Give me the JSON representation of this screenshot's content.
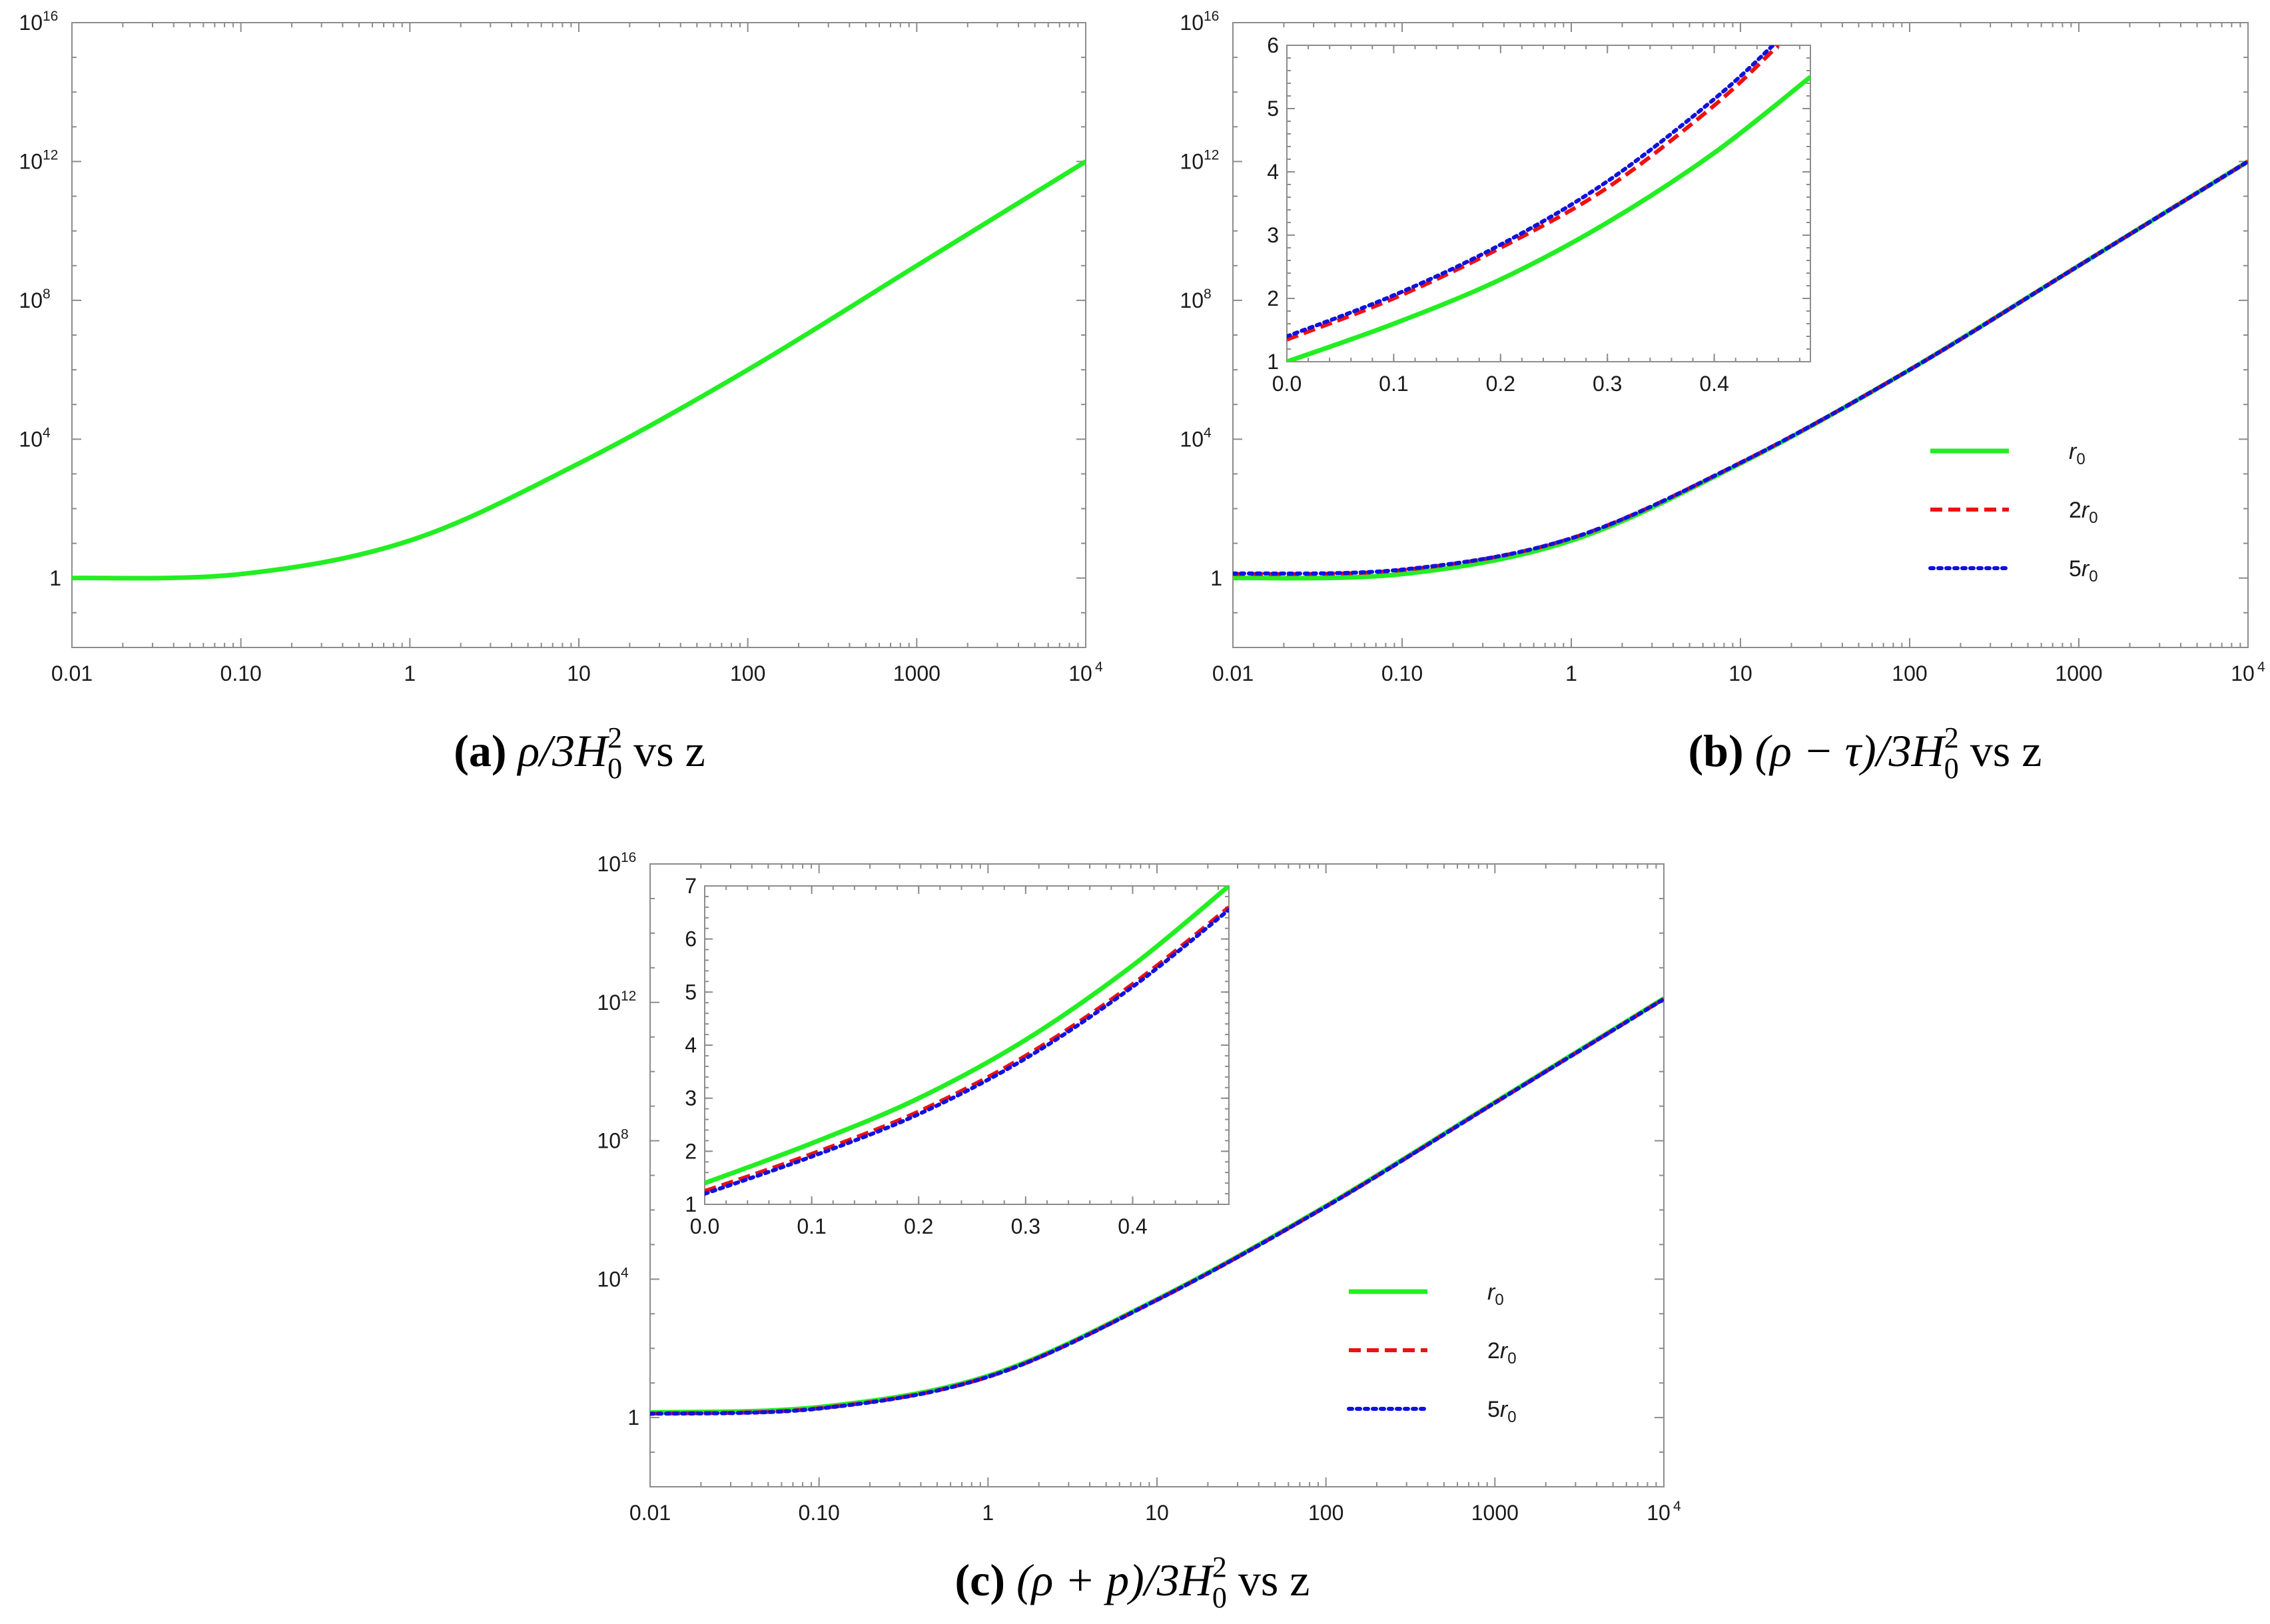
{
  "colors": {
    "green": "#22ee22",
    "red": "#ee1111",
    "blue": "#1111dd",
    "axis": "#8c8c8c"
  },
  "chart_data": [
    {
      "id": "a",
      "type": "line",
      "caption": {
        "label": "(a)",
        "text": "ρ/3H",
        "sup": "2",
        "sub": "0",
        "tail": "vs z"
      },
      "xscale": "log",
      "yscale": "log",
      "xlim": [
        0.01,
        10000
      ],
      "ylim": [
        0.01,
        1e+16
      ],
      "x_ticks": [
        "0.01",
        "0.10",
        "1",
        "10",
        "100",
        "1000",
        "10"
      ],
      "x_last_tick_sup": "4",
      "y_ticks": [
        {
          "base": "1",
          "sup": ""
        },
        {
          "base": "10",
          "sup": "4"
        },
        {
          "base": "10",
          "sup": "8"
        },
        {
          "base": "10",
          "sup": "12"
        },
        {
          "base": "10",
          "sup": "16"
        }
      ],
      "legend": false,
      "series": [
        {
          "color": "green",
          "style": "solid",
          "x": [
            0.01,
            0.1,
            1,
            10,
            100,
            1000,
            10000
          ],
          "values": [
            1.0,
            1.3,
            12,
            2000,
            1000000.0,
            1000000000.0,
            1000000000000.0
          ]
        }
      ]
    },
    {
      "id": "b",
      "type": "line",
      "caption": {
        "label": "(b)",
        "text": "(ρ − τ)/3H",
        "sup": "2",
        "sub": "0",
        "tail": "vs z"
      },
      "xscale": "log",
      "yscale": "log",
      "xlim": [
        0.01,
        10000
      ],
      "ylim": [
        0.01,
        1e+16
      ],
      "x_ticks": [
        "0.01",
        "0.10",
        "1",
        "10",
        "100",
        "1000",
        "10"
      ],
      "x_last_tick_sup": "4",
      "y_ticks": [
        {
          "base": "1",
          "sup": ""
        },
        {
          "base": "10",
          "sup": "4"
        },
        {
          "base": "10",
          "sup": "8"
        },
        {
          "base": "10",
          "sup": "12"
        },
        {
          "base": "10",
          "sup": "16"
        }
      ],
      "legend": true,
      "legend_position": "right",
      "legend_entries": [
        {
          "prefix": "",
          "sub": "0",
          "color": "green",
          "style": "solid"
        },
        {
          "prefix": "2",
          "sub": "0",
          "color": "red",
          "style": "dashed"
        },
        {
          "prefix": "5",
          "sub": "0",
          "color": "blue",
          "style": "dotted"
        }
      ],
      "series": [
        {
          "color": "green",
          "style": "solid",
          "x": [
            0.01,
            0.1,
            1,
            10,
            100,
            1000,
            10000
          ],
          "values": [
            1.0,
            1.3,
            12,
            2000,
            1000000.0,
            1000000000.0,
            1000000000000.0
          ]
        },
        {
          "color": "red",
          "style": "dashed",
          "x": [
            0.01,
            0.1,
            1,
            10,
            100,
            1000,
            10000
          ],
          "values": [
            1.3,
            1.7,
            14,
            2100,
            1000000.0,
            1000000000.0,
            1000000000000.0
          ]
        },
        {
          "color": "blue",
          "style": "dotted",
          "x": [
            0.01,
            0.1,
            1,
            10,
            100,
            1000,
            10000
          ],
          "values": [
            1.35,
            1.75,
            14,
            2100,
            1000000.0,
            1000000000.0,
            1000000000000.0
          ]
        }
      ],
      "inset": {
        "xlim": [
          0,
          0.49
        ],
        "ylim": [
          1,
          6
        ],
        "x_ticks": [
          "0.0",
          "0.1",
          "0.2",
          "0.3",
          "0.4"
        ],
        "y_ticks": [
          "1",
          "2",
          "3",
          "4",
          "5",
          "6"
        ],
        "series": [
          {
            "color": "green",
            "style": "solid",
            "x": [
              0,
              0.1,
              0.2,
              0.3,
              0.4,
              0.49
            ],
            "values": [
              1.0,
              1.6,
              2.3,
              3.2,
              4.3,
              5.5
            ]
          },
          {
            "color": "red",
            "style": "dashed",
            "x": [
              0,
              0.1,
              0.2,
              0.3,
              0.4,
              0.46
            ],
            "values": [
              1.35,
              2.0,
              2.8,
              3.75,
              5.05,
              6.0
            ]
          },
          {
            "color": "blue",
            "style": "dotted",
            "x": [
              0,
              0.1,
              0.2,
              0.3,
              0.4,
              0.455
            ],
            "values": [
              1.4,
              2.05,
              2.85,
              3.85,
              5.15,
              6.0
            ]
          }
        ]
      }
    },
    {
      "id": "c",
      "type": "line",
      "caption": {
        "label": "(c)",
        "text": "(ρ + p)/3H",
        "sup": "2",
        "sub": "0",
        "tail": "vs z"
      },
      "xscale": "log",
      "yscale": "log",
      "xlim": [
        0.01,
        10000
      ],
      "ylim": [
        0.01,
        1e+16
      ],
      "x_ticks": [
        "0.01",
        "0.10",
        "1",
        "10",
        "100",
        "1000",
        "10"
      ],
      "x_last_tick_sup": "4",
      "y_ticks": [
        {
          "base": "1",
          "sup": ""
        },
        {
          "base": "10",
          "sup": "4"
        },
        {
          "base": "10",
          "sup": "8"
        },
        {
          "base": "10",
          "sup": "12"
        },
        {
          "base": "10",
          "sup": "16"
        }
      ],
      "legend": true,
      "legend_position": "right",
      "legend_entries": [
        {
          "prefix": "",
          "sub": "0",
          "color": "green",
          "style": "solid"
        },
        {
          "prefix": "2",
          "sub": "0",
          "color": "red",
          "style": "dashed"
        },
        {
          "prefix": "5",
          "sub": "0",
          "color": "blue",
          "style": "dotted"
        }
      ],
      "series": [
        {
          "color": "green",
          "style": "solid",
          "x": [
            0.01,
            0.1,
            1,
            10,
            100,
            1000,
            10000
          ],
          "values": [
            1.4,
            2.0,
            16,
            2600,
            1300000.0,
            1300000000.0,
            1300000000000.0
          ]
        },
        {
          "color": "red",
          "style": "dashed",
          "x": [
            0.01,
            0.1,
            1,
            10,
            100,
            1000,
            10000
          ],
          "values": [
            1.3,
            1.85,
            15,
            2500,
            1250000.0,
            1250000000.0,
            1250000000000.0
          ]
        },
        {
          "color": "blue",
          "style": "dotted",
          "x": [
            0.01,
            0.1,
            1,
            10,
            100,
            1000,
            10000
          ],
          "values": [
            1.28,
            1.82,
            15,
            2500,
            1250000.0,
            1250000000.0,
            1250000000000.0
          ]
        }
      ],
      "inset": {
        "xlim": [
          0,
          0.49
        ],
        "ylim": [
          1,
          7
        ],
        "x_ticks": [
          "0.0",
          "0.1",
          "0.2",
          "0.3",
          "0.4"
        ],
        "y_ticks": [
          "1",
          "2",
          "3",
          "4",
          "5",
          "6",
          "7"
        ],
        "series": [
          {
            "color": "green",
            "style": "solid",
            "x": [
              0,
              0.1,
              0.2,
              0.3,
              0.4,
              0.49
            ],
            "values": [
              1.4,
              2.15,
              3.0,
              4.1,
              5.5,
              7.0
            ]
          },
          {
            "color": "red",
            "style": "dashed",
            "x": [
              0,
              0.1,
              0.2,
              0.3,
              0.4,
              0.49
            ],
            "values": [
              1.25,
              1.95,
              2.75,
              3.8,
              5.15,
              6.6
            ]
          },
          {
            "color": "blue",
            "style": "dotted",
            "x": [
              0,
              0.1,
              0.2,
              0.3,
              0.4,
              0.49
            ],
            "values": [
              1.2,
              1.9,
              2.7,
              3.75,
              5.1,
              6.55
            ]
          }
        ]
      }
    }
  ]
}
